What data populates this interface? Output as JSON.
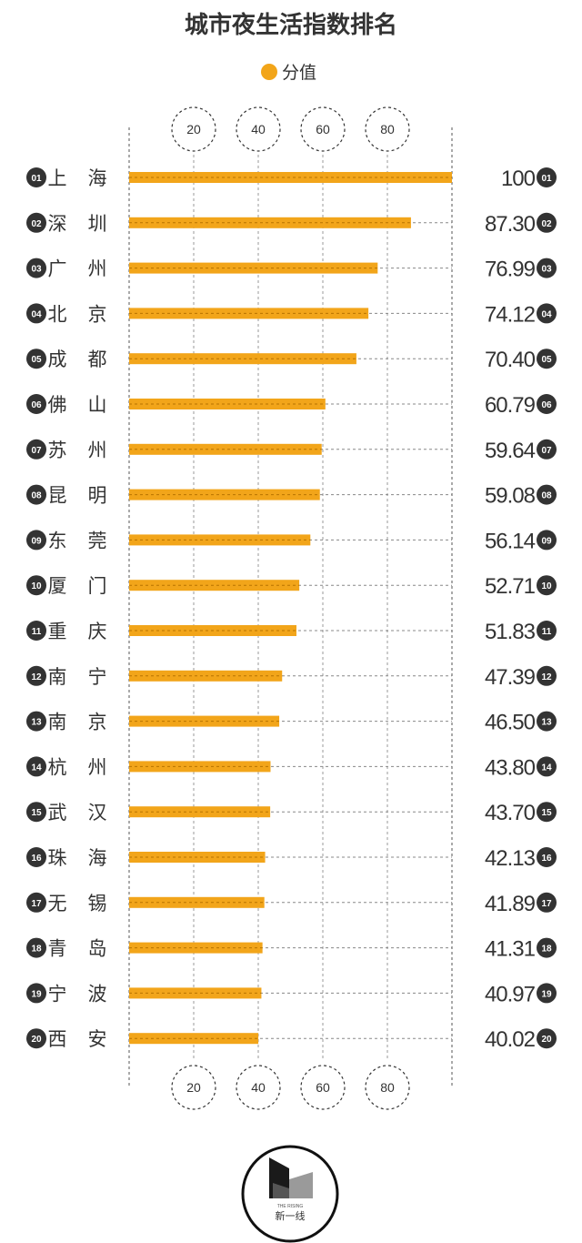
{
  "chart_data": {
    "type": "bar",
    "title": "城市夜生活指数排名",
    "legend": {
      "label": "分值",
      "color": "#f2a51a",
      "placement": "top-center"
    },
    "axis_ticks": [
      "20",
      "40",
      "60",
      "80"
    ],
    "xlim": [
      0,
      100
    ],
    "grid": true,
    "categories": [
      {
        "rank": "01",
        "city": [
          "上",
          "海"
        ]
      },
      {
        "rank": "02",
        "city": [
          "深",
          "圳"
        ]
      },
      {
        "rank": "03",
        "city": [
          "广",
          "州"
        ]
      },
      {
        "rank": "04",
        "city": [
          "北",
          "京"
        ]
      },
      {
        "rank": "05",
        "city": [
          "成",
          "都"
        ]
      },
      {
        "rank": "06",
        "city": [
          "佛",
          "山"
        ]
      },
      {
        "rank": "07",
        "city": [
          "苏",
          "州"
        ]
      },
      {
        "rank": "08",
        "city": [
          "昆",
          "明"
        ]
      },
      {
        "rank": "09",
        "city": [
          "东",
          "莞"
        ]
      },
      {
        "rank": "10",
        "city": [
          "厦",
          "门"
        ]
      },
      {
        "rank": "11",
        "city": [
          "重",
          "庆"
        ]
      },
      {
        "rank": "12",
        "city": [
          "南",
          "宁"
        ]
      },
      {
        "rank": "13",
        "city": [
          "南",
          "京"
        ]
      },
      {
        "rank": "14",
        "city": [
          "杭",
          "州"
        ]
      },
      {
        "rank": "15",
        "city": [
          "武",
          "汉"
        ]
      },
      {
        "rank": "16",
        "city": [
          "珠",
          "海"
        ]
      },
      {
        "rank": "17",
        "city": [
          "无",
          "锡"
        ]
      },
      {
        "rank": "18",
        "city": [
          "青",
          "岛"
        ]
      },
      {
        "rank": "19",
        "city": [
          "宁",
          "波"
        ]
      },
      {
        "rank": "20",
        "city": [
          "西",
          "安"
        ]
      }
    ],
    "values": [
      100,
      87.3,
      76.99,
      74.12,
      70.4,
      60.79,
      59.64,
      59.08,
      56.14,
      52.71,
      51.83,
      47.39,
      46.5,
      43.8,
      43.7,
      42.13,
      41.89,
      41.31,
      40.97,
      40.02
    ],
    "value_labels": [
      "100",
      "87.30",
      "76.99",
      "74.12",
      "70.40",
      "60.79",
      "59.64",
      "59.08",
      "56.14",
      "52.71",
      "51.83",
      "47.39",
      "46.50",
      "43.80",
      "43.70",
      "42.13",
      "41.89",
      "41.31",
      "40.97",
      "40.02"
    ],
    "bar_color": "#f2a51a"
  },
  "logo": {
    "caption": "新一线",
    "small_text": "THE RISING"
  }
}
